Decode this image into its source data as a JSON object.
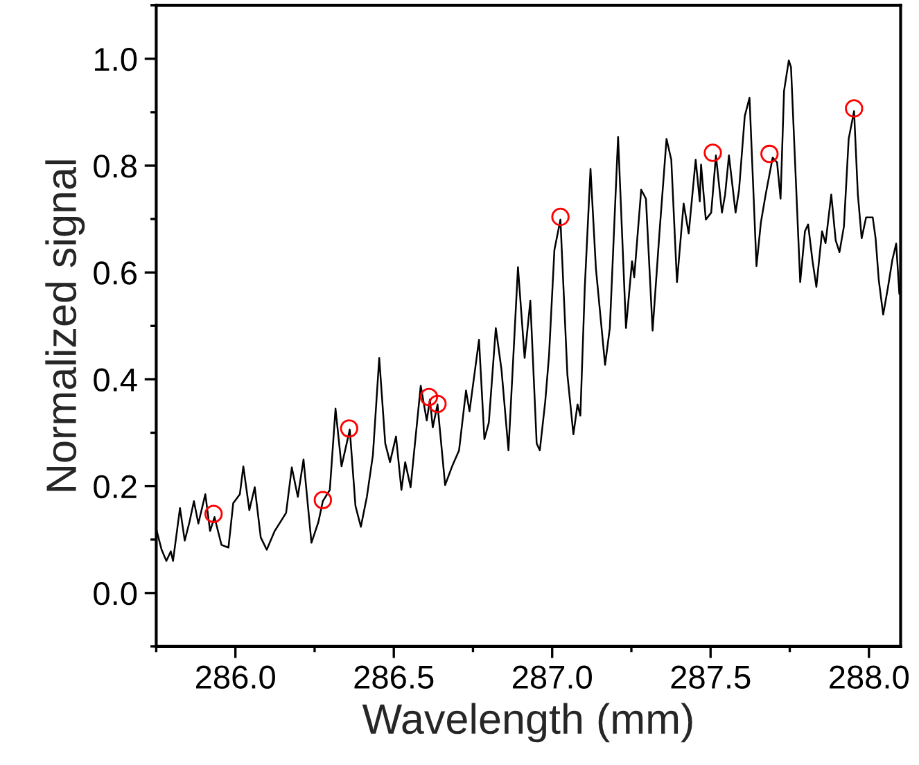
{
  "chart_data": {
    "type": "line",
    "xlabel": "Wavelength (mm)",
    "ylabel": "Normalized signal",
    "xlim": [
      285.75,
      288.1
    ],
    "xticks": [
      {
        "value": 286.0,
        "label": "286.0"
      },
      {
        "value": 286.5,
        "label": "286.5"
      },
      {
        "value": 287.0,
        "label": "287.0"
      },
      {
        "value": 287.5,
        "label": "287.5"
      },
      {
        "value": 288.0,
        "label": "288.0"
      }
    ],
    "ylim": [
      -0.1,
      1.1
    ],
    "yticks": [
      {
        "value": 0.0,
        "label": "0.0"
      },
      {
        "value": 0.2,
        "label": "0.2"
      },
      {
        "value": 0.4,
        "label": "0.4"
      },
      {
        "value": 0.6,
        "label": "0.6"
      },
      {
        "value": 0.8,
        "label": "0.8"
      },
      {
        "value": 1.0,
        "label": "1.0"
      }
    ],
    "grid": false,
    "legend": false,
    "series": [
      {
        "color": "#000000",
        "line_style": "solid",
        "x": [
          285.75,
          285.767,
          285.782,
          285.796,
          285.803,
          285.825,
          285.84,
          285.855,
          285.869,
          285.883,
          285.905,
          285.92,
          285.934,
          285.956,
          285.978,
          285.993,
          286.014,
          286.025,
          286.044,
          286.061,
          286.08,
          286.099,
          286.124,
          286.16,
          286.178,
          286.197,
          286.215,
          286.24,
          286.262,
          286.276,
          286.298,
          286.316,
          286.335,
          286.361,
          286.379,
          286.396,
          286.415,
          286.434,
          286.454,
          286.473,
          286.488,
          286.507,
          286.524,
          286.536,
          286.553,
          286.585,
          286.604,
          286.614,
          286.623,
          286.638,
          286.662,
          286.684,
          286.706,
          286.728,
          286.739,
          286.769,
          286.786,
          286.8,
          286.822,
          286.84,
          286.862,
          286.892,
          286.913,
          286.931,
          286.951,
          286.961,
          286.978,
          286.99,
          287.007,
          287.026,
          287.048,
          287.067,
          287.08,
          287.089,
          287.103,
          287.121,
          287.138,
          287.167,
          287.182,
          287.208,
          287.233,
          287.252,
          287.259,
          287.281,
          287.296,
          287.317,
          287.339,
          287.361,
          287.376,
          287.394,
          287.415,
          287.431,
          287.453,
          287.466,
          287.47,
          287.485,
          287.502,
          287.517,
          287.536,
          287.546,
          287.558,
          287.579,
          287.59,
          287.608,
          287.623,
          287.645,
          287.659,
          287.674,
          287.696,
          287.71,
          287.721,
          287.732,
          287.747,
          287.754,
          287.783,
          287.798,
          287.808,
          287.822,
          287.834,
          287.852,
          287.863,
          287.881,
          287.895,
          287.907,
          287.921,
          287.936,
          287.953,
          287.965,
          287.977,
          287.991,
          288.012,
          288.021,
          288.031,
          288.045,
          288.06,
          288.074,
          288.086,
          288.096
        ],
        "values": [
          0.12,
          0.081,
          0.06,
          0.078,
          0.06,
          0.159,
          0.098,
          0.133,
          0.172,
          0.13,
          0.185,
          0.116,
          0.142,
          0.09,
          0.085,
          0.168,
          0.185,
          0.237,
          0.155,
          0.198,
          0.104,
          0.081,
          0.116,
          0.15,
          0.235,
          0.18,
          0.25,
          0.094,
          0.133,
          0.172,
          0.193,
          0.345,
          0.237,
          0.306,
          0.163,
          0.124,
          0.18,
          0.258,
          0.44,
          0.28,
          0.245,
          0.293,
          0.193,
          0.245,
          0.198,
          0.388,
          0.323,
          0.362,
          0.31,
          0.353,
          0.202,
          0.237,
          0.267,
          0.379,
          0.34,
          0.474,
          0.288,
          0.319,
          0.496,
          0.418,
          0.267,
          0.61,
          0.44,
          0.547,
          0.28,
          0.267,
          0.358,
          0.444,
          0.642,
          0.699,
          0.409,
          0.297,
          0.353,
          0.332,
          0.573,
          0.794,
          0.608,
          0.427,
          0.496,
          0.854,
          0.496,
          0.621,
          0.591,
          0.755,
          0.738,
          0.491,
          0.677,
          0.85,
          0.811,
          0.582,
          0.729,
          0.673,
          0.811,
          0.733,
          0.802,
          0.699,
          0.712,
          0.819,
          0.712,
          0.746,
          0.819,
          0.712,
          0.755,
          0.893,
          0.927,
          0.612,
          0.694,
          0.746,
          0.815,
          0.806,
          0.738,
          0.94,
          0.997,
          0.984,
          0.582,
          0.677,
          0.69,
          0.621,
          0.573,
          0.677,
          0.655,
          0.746,
          0.66,
          0.638,
          0.686,
          0.85,
          0.902,
          0.746,
          0.664,
          0.703,
          0.703,
          0.664,
          0.586,
          0.521,
          0.572,
          0.624,
          0.654,
          0.56
        ]
      },
      {
        "type": "scatter",
        "color": "#ff0000",
        "marker": "circle",
        "x": [
          285.931,
          286.276,
          286.359,
          286.611,
          286.638,
          287.026,
          287.507,
          287.686,
          287.953
        ],
        "values": [
          0.148,
          0.174,
          0.308,
          0.367,
          0.354,
          0.704,
          0.824,
          0.822,
          0.907
        ]
      }
    ]
  }
}
